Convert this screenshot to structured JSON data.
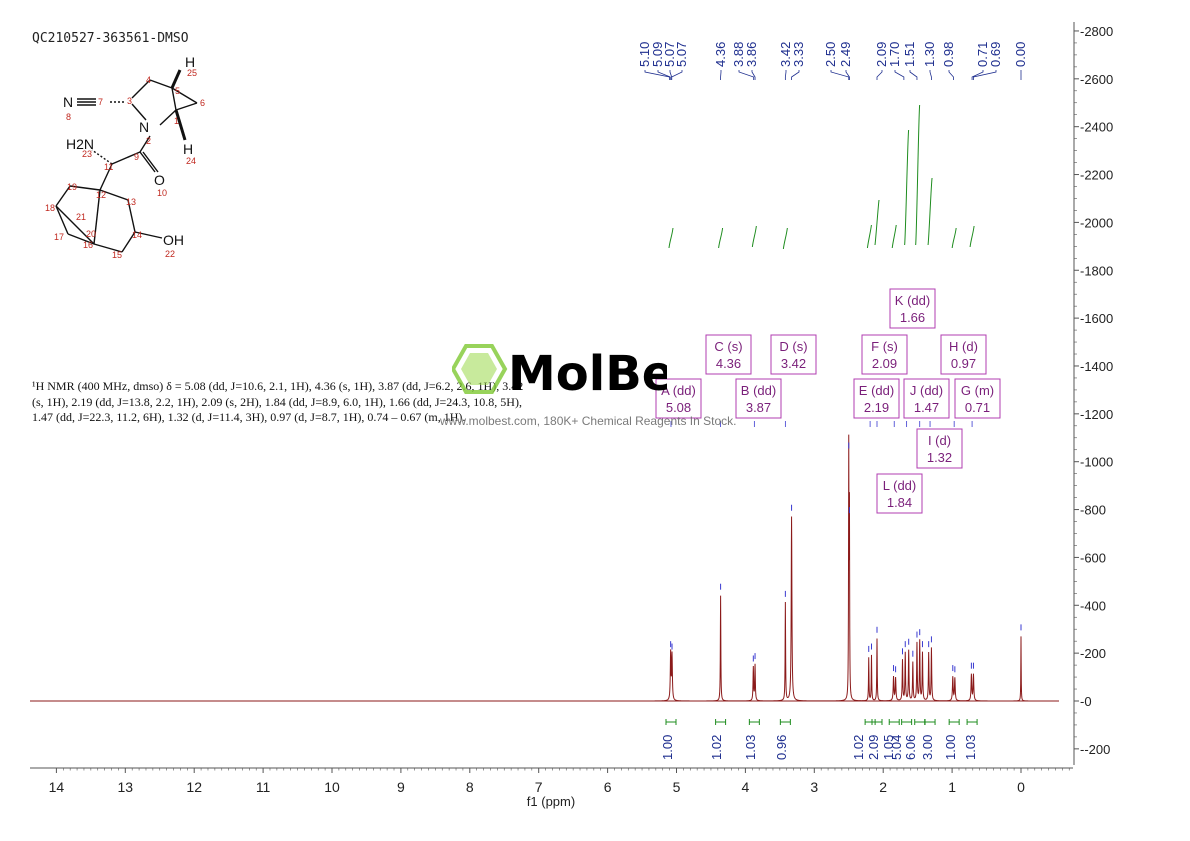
{
  "header": {
    "sample_id": "QC210527-363561-DMSO"
  },
  "structure": {
    "substituents": [
      "N",
      "H2N",
      "O",
      "OH",
      "H",
      "H"
    ],
    "atom_numbers": [
      "1",
      "2",
      "3",
      "4",
      "5",
      "6",
      "7",
      "8",
      "9",
      "10",
      "11",
      "12",
      "13",
      "14",
      "15",
      "16",
      "17",
      "18",
      "19",
      "20",
      "21",
      "22",
      "23",
      "24",
      "25"
    ]
  },
  "nmr_report": {
    "lines": [
      "¹H NMR (400 MHz, dmso) δ = 5.08 (dd, J=10.6, 2.1, 1H), 4.36 (s, 1H), 3.87 (dd, J=6.2, 2.6, 1H), 3.42",
      "(s, 1H), 2.19 (dd, J=13.8, 2.2, 1H), 2.09 (s, 2H), 1.84 (dd, J=8.9, 6.0, 1H), 1.66 (dd, J=24.3, 10.8, 5H),",
      "1.47 (dd, J=22.3, 11.2, 6H), 1.32 (d, J=11.4, 3H), 0.97 (d, J=8.7, 1H), 0.74 – 0.67 (m, 1H)."
    ]
  },
  "watermark": {
    "logo_text": "MolBest",
    "tagline": "www.molbest.com, 180K+ Chemical Reagents In Stock."
  },
  "colors": {
    "spectrum": "#8b1a1a",
    "integral": "#1e8c1e",
    "peak_label": "#1f2f8f",
    "multiplet_box": "#b03cb0",
    "multiplet_text": "#7a1f7a",
    "axis": "#555555"
  },
  "chart_data": {
    "type": "line",
    "xlabel": "f1 (ppm)",
    "x_reversed": true,
    "xlim": [
      14.5,
      -0.8
    ],
    "x_ticks": [
      14,
      13,
      12,
      11,
      10,
      9,
      8,
      7,
      6,
      5,
      4,
      3,
      2,
      1,
      0
    ],
    "ylim": [
      -280,
      2820
    ],
    "y_ticks": [
      2800,
      2600,
      2400,
      2200,
      2000,
      1800,
      1600,
      1400,
      1200,
      1000,
      800,
      600,
      400,
      200,
      0,
      -200
    ],
    "peak_labels": [
      "5.10",
      "5.09",
      "5.07",
      "5.07",
      "4.36",
      "3.88",
      "3.86",
      "3.42",
      "3.33",
      "2.50",
      "2.49",
      "2.09",
      "1.70",
      "1.51",
      "1.30",
      "0.98",
      "0.71",
      "0.69",
      "0.00"
    ],
    "peaks": [
      {
        "ppm": 5.085,
        "height": 200,
        "width": 0.012
      },
      {
        "ppm": 5.065,
        "height": 190,
        "width": 0.012
      },
      {
        "ppm": 4.36,
        "height": 440,
        "width": 0.008
      },
      {
        "ppm": 3.885,
        "height": 140,
        "width": 0.01
      },
      {
        "ppm": 3.86,
        "height": 150,
        "width": 0.01
      },
      {
        "ppm": 3.42,
        "height": 410,
        "width": 0.008
      },
      {
        "ppm": 3.33,
        "height": 770,
        "width": 0.012
      },
      {
        "ppm": 2.5,
        "height": 1030,
        "width": 0.007
      },
      {
        "ppm": 2.49,
        "height": 760,
        "width": 0.007
      },
      {
        "ppm": 2.21,
        "height": 180,
        "width": 0.008
      },
      {
        "ppm": 2.17,
        "height": 190,
        "width": 0.008
      },
      {
        "ppm": 2.09,
        "height": 260,
        "width": 0.008
      },
      {
        "ppm": 1.85,
        "height": 100,
        "width": 0.012
      },
      {
        "ppm": 1.82,
        "height": 95,
        "width": 0.012
      },
      {
        "ppm": 1.72,
        "height": 170,
        "width": 0.01
      },
      {
        "ppm": 1.68,
        "height": 200,
        "width": 0.01
      },
      {
        "ppm": 1.63,
        "height": 210,
        "width": 0.01
      },
      {
        "ppm": 1.57,
        "height": 160,
        "width": 0.01
      },
      {
        "ppm": 1.51,
        "height": 240,
        "width": 0.01
      },
      {
        "ppm": 1.47,
        "height": 250,
        "width": 0.01
      },
      {
        "ppm": 1.43,
        "height": 200,
        "width": 0.01
      },
      {
        "ppm": 1.34,
        "height": 200,
        "width": 0.01
      },
      {
        "ppm": 1.3,
        "height": 220,
        "width": 0.01
      },
      {
        "ppm": 0.99,
        "height": 100,
        "width": 0.012
      },
      {
        "ppm": 0.96,
        "height": 95,
        "width": 0.012
      },
      {
        "ppm": 0.72,
        "height": 110,
        "width": 0.012
      },
      {
        "ppm": 0.69,
        "height": 110,
        "width": 0.012
      },
      {
        "ppm": 0.0,
        "height": 270,
        "width": 0.006
      }
    ],
    "multiplets": [
      {
        "label": "A (dd)",
        "value": "5.08",
        "ppm": 5.08
      },
      {
        "label": "C (s)",
        "value": "4.36",
        "ppm": 4.36
      },
      {
        "label": "B (dd)",
        "value": "3.87",
        "ppm": 3.87
      },
      {
        "label": "D (s)",
        "value": "3.42",
        "ppm": 3.42
      },
      {
        "label": "E (dd)",
        "value": "2.19",
        "ppm": 2.19
      },
      {
        "label": "F (s)",
        "value": "2.09",
        "ppm": 2.09
      },
      {
        "label": "L (dd)",
        "value": "1.84",
        "ppm": 1.84
      },
      {
        "label": "K (dd)",
        "value": "1.66",
        "ppm": 1.66
      },
      {
        "label": "J (dd)",
        "value": "1.47",
        "ppm": 1.47
      },
      {
        "label": "I (d)",
        "value": "1.32",
        "ppm": 1.32
      },
      {
        "label": "H (d)",
        "value": "0.97",
        "ppm": 0.97
      },
      {
        "label": "G (m)",
        "value": "0.71",
        "ppm": 0.71
      }
    ],
    "integrals": [
      {
        "ppm": 5.08,
        "value": "1.00"
      },
      {
        "ppm": 4.36,
        "value": "1.02"
      },
      {
        "ppm": 3.87,
        "value": "1.03"
      },
      {
        "ppm": 3.42,
        "value": "0.96"
      },
      {
        "ppm": 2.19,
        "value": "1.02"
      },
      {
        "ppm": 2.09,
        "value": "2.09"
      },
      {
        "ppm": 1.84,
        "value": "1.05"
      },
      {
        "ppm": 1.66,
        "value": "5.04"
      },
      {
        "ppm": 1.47,
        "value": "6.06"
      },
      {
        "ppm": 1.32,
        "value": "3.00"
      },
      {
        "ppm": 0.97,
        "value": "1.00"
      },
      {
        "ppm": 0.71,
        "value": "1.03"
      }
    ]
  }
}
